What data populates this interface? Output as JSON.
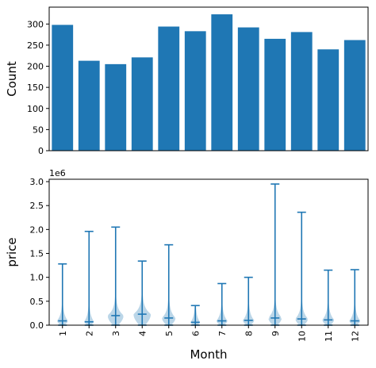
{
  "chart_data": [
    {
      "type": "bar",
      "categories": [
        "1",
        "2",
        "3",
        "4",
        "5",
        "6",
        "7",
        "8",
        "9",
        "10",
        "11",
        "12"
      ],
      "values": [
        298,
        213,
        205,
        221,
        294,
        283,
        323,
        292,
        265,
        281,
        240,
        262
      ],
      "xlabel": "",
      "ylabel": "Count",
      "ylim": [
        0,
        340
      ],
      "yticks": [
        0,
        50,
        100,
        150,
        200,
        250,
        300
      ],
      "show_xticklabels": false,
      "color": "#1f77b4",
      "grid": false
    },
    {
      "type": "violin",
      "categories": [
        "1",
        "2",
        "3",
        "4",
        "5",
        "6",
        "7",
        "8",
        "9",
        "10",
        "11",
        "12"
      ],
      "xlabel": "Month",
      "ylabel": "price",
      "y_scale_label": "1e6",
      "ylim": [
        0,
        3.05
      ],
      "yticks": [
        0.0,
        0.5,
        1.0,
        1.5,
        2.0,
        2.5,
        3.0
      ],
      "ytick_labels": [
        "0.0",
        "0.5",
        "1.0",
        "1.5",
        "2.0",
        "2.5",
        "3.0"
      ],
      "max": [
        1.28,
        1.96,
        2.05,
        1.34,
        1.68,
        0.41,
        0.87,
        1.0,
        2.95,
        2.36,
        1.15,
        1.16
      ],
      "min": [
        0.0,
        0.0,
        0.0,
        0.0,
        0.0,
        0.0,
        0.0,
        0.0,
        0.0,
        0.0,
        0.0,
        0.0
      ],
      "median": [
        0.09,
        0.07,
        0.2,
        0.23,
        0.15,
        0.06,
        0.09,
        0.1,
        0.15,
        0.13,
        0.11,
        0.09
      ],
      "color": "#1f77b4",
      "grid": false
    }
  ]
}
